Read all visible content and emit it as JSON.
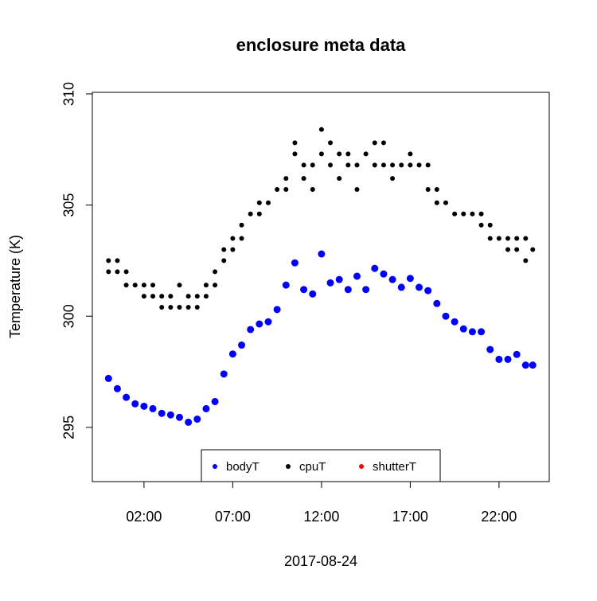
{
  "chart_data": {
    "type": "scatter",
    "title": "enclosure meta data",
    "xlabel": "2017-08-24",
    "ylabel": "Temperature (K)",
    "xlim": [
      -0.91,
      24.83
    ],
    "ylim": [
      292.56,
      310.07
    ],
    "xticks": [
      {
        "value": 2,
        "label": "02:00"
      },
      {
        "value": 7,
        "label": "07:00"
      },
      {
        "value": 12,
        "label": "12:00"
      },
      {
        "value": 17,
        "label": "17:00"
      },
      {
        "value": 22,
        "label": "22:00"
      }
    ],
    "yticks": [
      295,
      300,
      305,
      310
    ],
    "series": [
      {
        "name": "bodyT",
        "color": "#0000ff",
        "x": [
          0,
          0.5,
          1,
          1.5,
          2,
          2.5,
          3,
          3.5,
          4,
          4.5,
          5,
          5.5,
          6,
          6.5,
          7,
          7.5,
          8,
          8.5,
          9,
          9.5,
          10,
          10.5,
          11,
          11.5,
          12,
          12.5,
          13,
          13.5,
          14,
          14.5,
          15,
          15.5,
          16,
          16.5,
          17,
          17.5,
          18,
          18.5,
          19,
          19.5,
          20,
          20.5,
          21,
          21.5,
          22,
          22.5,
          23,
          23.5,
          23.9
        ],
        "values": [
          297.2,
          296.74,
          296.35,
          296.06,
          295.95,
          295.84,
          295.63,
          295.56,
          295.45,
          295.23,
          295.37,
          295.84,
          296.16,
          297.4,
          298.3,
          298.7,
          299.4,
          299.65,
          299.75,
          300.3,
          301.4,
          302.4,
          301.2,
          301.0,
          302.8,
          301.5,
          301.65,
          301.2,
          301.8,
          301.2,
          302.15,
          301.9,
          301.65,
          301.3,
          301.7,
          301.3,
          301.15,
          300.57,
          300.0,
          299.75,
          299.43,
          299.3,
          299.3,
          298.5,
          298.06,
          298.06,
          298.28,
          297.8,
          297.8
        ]
      },
      {
        "name": "cpuT",
        "color": "#000000",
        "x": [
          0,
          0,
          0.5,
          0.5,
          1,
          1,
          1.5,
          2,
          2,
          2.5,
          2.5,
          3,
          3,
          3.5,
          3.5,
          4,
          4,
          4.5,
          4.5,
          5,
          5,
          5.5,
          5.5,
          6,
          6,
          6.5,
          6.5,
          7,
          7,
          7.5,
          7.5,
          8,
          8.5,
          8.5,
          9,
          9.5,
          10,
          10,
          10.5,
          10.5,
          11,
          11,
          11.5,
          11.5,
          12,
          12,
          12.5,
          12.5,
          13,
          13,
          13.5,
          13.5,
          14,
          14,
          14.5,
          15,
          15,
          15.5,
          15.5,
          16,
          16,
          16.5,
          17,
          17,
          17.5,
          18,
          18,
          18.5,
          18.5,
          19,
          19.5,
          20,
          20.5,
          21,
          21,
          21.5,
          21.5,
          22,
          22.5,
          22.5,
          23,
          23,
          23.5,
          23.5,
          23.9
        ],
        "values": [
          302.5,
          302.0,
          302.5,
          302.0,
          302.0,
          301.4,
          301.4,
          301.4,
          300.9,
          301.4,
          300.9,
          300.9,
          300.4,
          300.9,
          300.4,
          300.4,
          301.4,
          300.9,
          300.4,
          300.4,
          300.9,
          301.4,
          300.9,
          301.4,
          302.0,
          302.5,
          303.0,
          303.5,
          303.0,
          304.1,
          303.5,
          304.6,
          304.6,
          305.1,
          305.1,
          305.7,
          306.2,
          305.7,
          307.3,
          307.8,
          306.8,
          306.2,
          306.8,
          305.7,
          308.4,
          307.3,
          306.8,
          307.8,
          307.3,
          306.2,
          306.8,
          307.3,
          306.8,
          305.7,
          307.3,
          307.8,
          306.8,
          306.8,
          307.8,
          306.8,
          306.2,
          306.8,
          307.3,
          306.8,
          306.8,
          306.8,
          305.7,
          305.7,
          305.1,
          305.1,
          304.6,
          304.6,
          304.6,
          304.6,
          304.1,
          304.1,
          303.5,
          303.5,
          303.5,
          303.0,
          303.5,
          303.0,
          302.5,
          303.5,
          303.0
        ]
      },
      {
        "name": "shutterT",
        "color": "#ff0000",
        "x": [],
        "values": []
      }
    ]
  }
}
